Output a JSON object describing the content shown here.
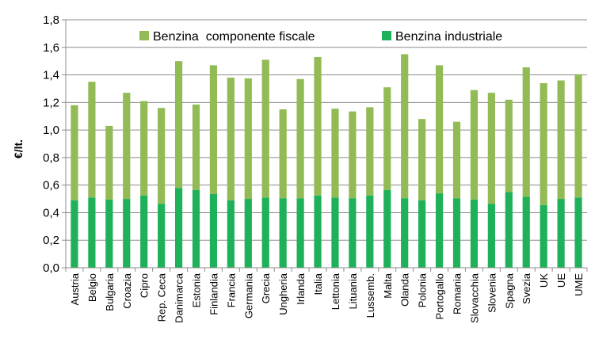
{
  "chart_data": {
    "type": "bar",
    "stacked": true,
    "title": "",
    "xlabel": "",
    "ylabel": "€/lt.",
    "ylim": [
      0,
      1.8
    ],
    "ytick_step": 0.2,
    "yticks": [
      "0,0",
      "0,2",
      "0,4",
      "0,6",
      "0,8",
      "1,0",
      "1,2",
      "1,4",
      "1,6",
      "1,8"
    ],
    "grid": true,
    "legend_position": "top",
    "categories": [
      "Austria",
      "Belgio",
      "Bulgaria",
      "Croazia",
      "Cipro",
      "Rep. Ceca",
      "Danimarca",
      "Estonia",
      "Finlandia",
      "Francia",
      "Germania",
      "Grecia",
      "Ungheria",
      "Irlanda",
      "Italia",
      "Lettonia",
      "Lituania",
      "Lussemb.",
      "Malta",
      "Olanda",
      "Polonia",
      "Portogallo",
      "Romania",
      "Slovacchia",
      "Slovenia",
      "Spagna",
      "Svezia",
      "UK",
      "UE",
      "UME"
    ],
    "series": [
      {
        "name": "Benzina industriale",
        "color": "#1fb15a",
        "values": [
          0.49,
          0.51,
          0.495,
          0.5,
          0.525,
          0.465,
          0.58,
          0.565,
          0.535,
          0.49,
          0.5,
          0.51,
          0.505,
          0.505,
          0.525,
          0.51,
          0.505,
          0.525,
          0.565,
          0.505,
          0.49,
          0.54,
          0.505,
          0.495,
          0.465,
          0.55,
          0.515,
          0.455,
          0.5,
          0.51
        ]
      },
      {
        "name": "Benzina  componente fiscale",
        "color": "#93bb55",
        "values": [
          0.69,
          0.84,
          0.535,
          0.77,
          0.685,
          0.695,
          0.92,
          0.62,
          0.935,
          0.89,
          0.875,
          1.0,
          0.645,
          0.865,
          1.005,
          0.645,
          0.63,
          0.64,
          0.745,
          1.045,
          0.59,
          0.93,
          0.555,
          0.795,
          0.805,
          0.67,
          0.94,
          0.885,
          0.86,
          0.895
        ]
      }
    ],
    "legend_order": [
      "Benzina  componente fiscale",
      "Benzina industriale"
    ]
  }
}
